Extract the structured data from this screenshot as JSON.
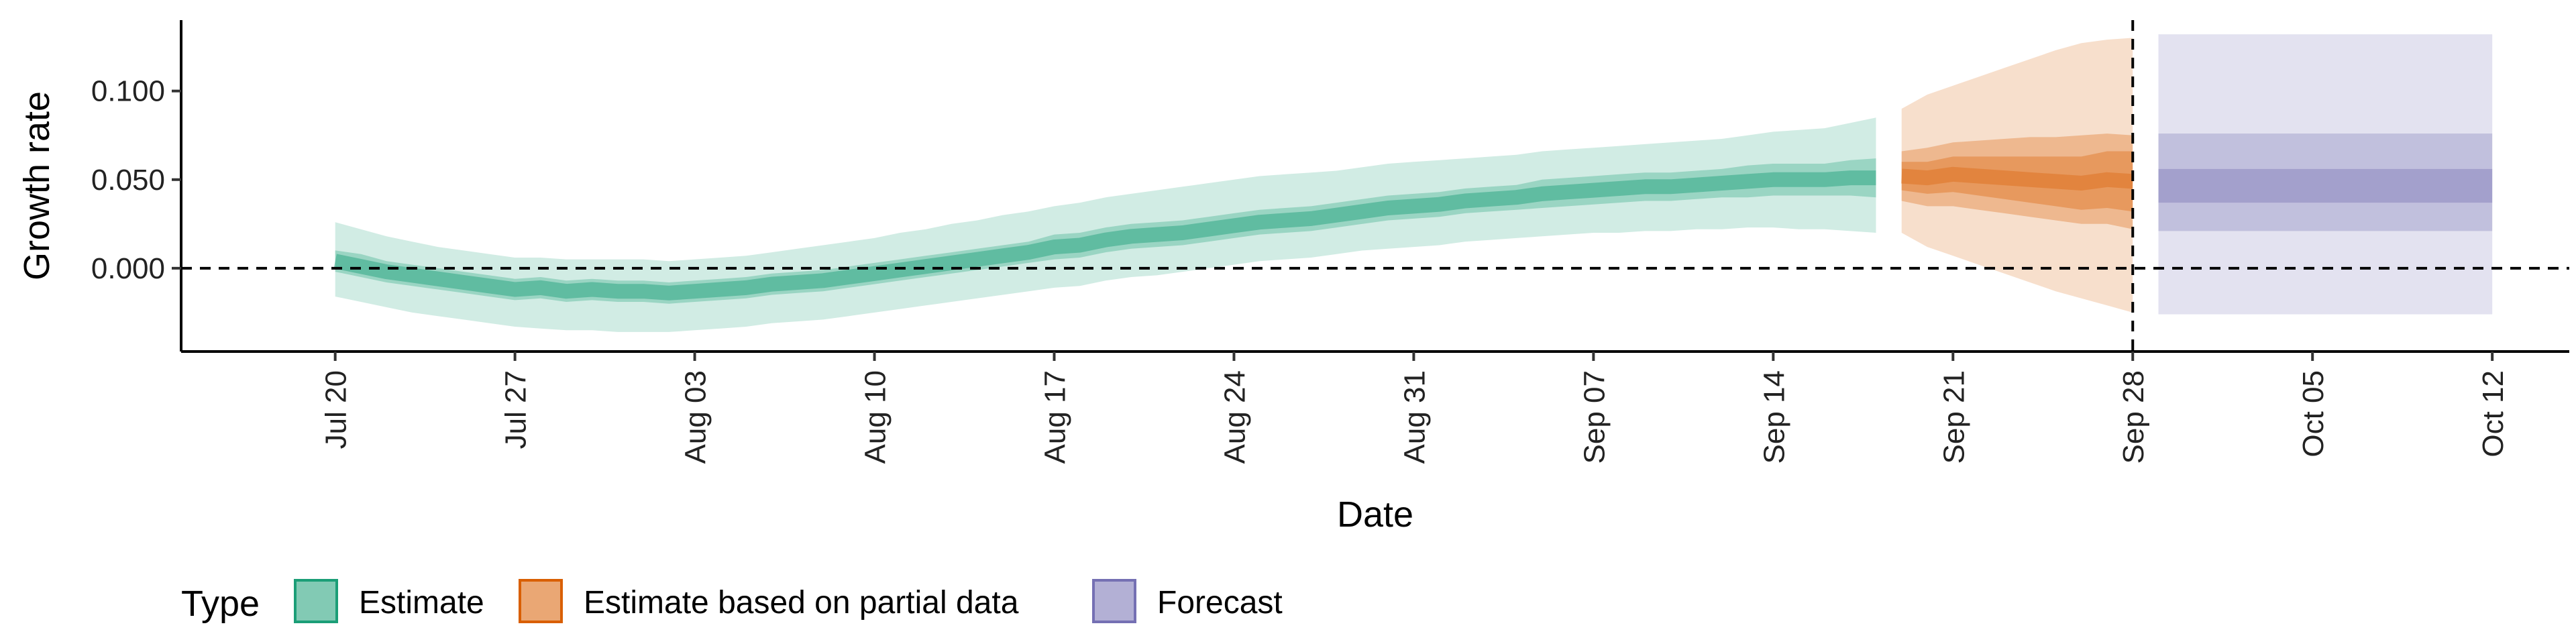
{
  "chart_data": {
    "type": "area",
    "xlabel": "Date",
    "ylabel": "Growth rate",
    "x_range": [
      "2020-07-14",
      "2020-10-15"
    ],
    "ylim": [
      -0.047,
      0.14
    ],
    "y_ticks": [
      0.0,
      0.05,
      0.1
    ],
    "y_tick_labels": [
      "0.000",
      "0.050",
      "0.100"
    ],
    "x_ticks": [
      "2020-07-20",
      "2020-07-27",
      "2020-08-03",
      "2020-08-10",
      "2020-08-17",
      "2020-08-24",
      "2020-08-31",
      "2020-09-07",
      "2020-09-14",
      "2020-09-21",
      "2020-09-28",
      "2020-10-05",
      "2020-10-12"
    ],
    "x_tick_labels": [
      "Jul 20",
      "Jul 27",
      "Aug 03",
      "Aug 10",
      "Aug 17",
      "Aug 24",
      "Aug 31",
      "Sep 07",
      "Sep 14",
      "Sep 21",
      "Sep 28",
      "Oct 05",
      "Oct 12"
    ],
    "hline": 0,
    "vline": "2020-09-28",
    "legend": {
      "title": "Type",
      "position": "bottom",
      "entries": [
        {
          "label": "Estimate",
          "color": "#1b9e77"
        },
        {
          "label": "Estimate based on partial data",
          "color": "#d95f02"
        },
        {
          "label": "Forecast",
          "color": "#7570b3"
        }
      ]
    },
    "series": [
      {
        "name": "Estimate",
        "color": "#1b9e77",
        "x": [
          "2020-07-20",
          "2020-07-21",
          "2020-07-22",
          "2020-07-23",
          "2020-07-24",
          "2020-07-25",
          "2020-07-26",
          "2020-07-27",
          "2020-07-28",
          "2020-07-29",
          "2020-07-30",
          "2020-07-31",
          "2020-08-01",
          "2020-08-02",
          "2020-08-03",
          "2020-08-04",
          "2020-08-05",
          "2020-08-06",
          "2020-08-07",
          "2020-08-08",
          "2020-08-09",
          "2020-08-10",
          "2020-08-11",
          "2020-08-12",
          "2020-08-13",
          "2020-08-14",
          "2020-08-15",
          "2020-08-16",
          "2020-08-17",
          "2020-08-18",
          "2020-08-19",
          "2020-08-20",
          "2020-08-21",
          "2020-08-22",
          "2020-08-23",
          "2020-08-24",
          "2020-08-25",
          "2020-08-26",
          "2020-08-27",
          "2020-08-28",
          "2020-08-29",
          "2020-08-30",
          "2020-08-31",
          "2020-09-01",
          "2020-09-02",
          "2020-09-03",
          "2020-09-04",
          "2020-09-05",
          "2020-09-06",
          "2020-09-07",
          "2020-09-08",
          "2020-09-09",
          "2020-09-10",
          "2020-09-11",
          "2020-09-12",
          "2020-09-13",
          "2020-09-14",
          "2020-09-15",
          "2020-09-16",
          "2020-09-17",
          "2020-09-18"
        ],
        "median": [
          0.004,
          0.001,
          -0.002,
          -0.004,
          -0.006,
          -0.008,
          -0.01,
          -0.012,
          -0.011,
          -0.013,
          -0.012,
          -0.013,
          -0.013,
          -0.014,
          -0.013,
          -0.012,
          -0.011,
          -0.009,
          -0.008,
          -0.007,
          -0.005,
          -0.003,
          -0.001,
          0.001,
          0.003,
          0.005,
          0.007,
          0.009,
          0.012,
          0.013,
          0.016,
          0.018,
          0.019,
          0.02,
          0.022,
          0.024,
          0.026,
          0.027,
          0.028,
          0.03,
          0.032,
          0.034,
          0.035,
          0.036,
          0.038,
          0.039,
          0.04,
          0.042,
          0.043,
          0.044,
          0.045,
          0.046,
          0.046,
          0.047,
          0.048,
          0.049,
          0.05,
          0.05,
          0.05,
          0.051,
          0.051
        ],
        "inner": [
          [
            -0.002,
            0.01
          ],
          [
            -0.005,
            0.008
          ],
          [
            -0.008,
            0.004
          ],
          [
            -0.01,
            0.002
          ],
          [
            -0.012,
            0.0
          ],
          [
            -0.014,
            -0.002
          ],
          [
            -0.016,
            -0.004
          ],
          [
            -0.018,
            -0.006
          ],
          [
            -0.017,
            -0.005
          ],
          [
            -0.019,
            -0.007
          ],
          [
            -0.018,
            -0.006
          ],
          [
            -0.019,
            -0.007
          ],
          [
            -0.019,
            -0.007
          ],
          [
            -0.02,
            -0.008
          ],
          [
            -0.019,
            -0.007
          ],
          [
            -0.018,
            -0.006
          ],
          [
            -0.017,
            -0.005
          ],
          [
            -0.015,
            -0.003
          ],
          [
            -0.014,
            -0.002
          ],
          [
            -0.013,
            -0.001
          ],
          [
            -0.011,
            0.001
          ],
          [
            -0.009,
            0.003
          ],
          [
            -0.007,
            0.005
          ],
          [
            -0.005,
            0.007
          ],
          [
            -0.003,
            0.009
          ],
          [
            -0.001,
            0.011
          ],
          [
            0.001,
            0.013
          ],
          [
            0.003,
            0.015
          ],
          [
            0.005,
            0.019
          ],
          [
            0.006,
            0.02
          ],
          [
            0.009,
            0.023
          ],
          [
            0.011,
            0.025
          ],
          [
            0.012,
            0.026
          ],
          [
            0.013,
            0.027
          ],
          [
            0.015,
            0.029
          ],
          [
            0.017,
            0.031
          ],
          [
            0.019,
            0.033
          ],
          [
            0.02,
            0.034
          ],
          [
            0.021,
            0.035
          ],
          [
            0.023,
            0.037
          ],
          [
            0.025,
            0.039
          ],
          [
            0.027,
            0.041
          ],
          [
            0.028,
            0.042
          ],
          [
            0.029,
            0.043
          ],
          [
            0.031,
            0.045
          ],
          [
            0.032,
            0.046
          ],
          [
            0.033,
            0.047
          ],
          [
            0.034,
            0.05
          ],
          [
            0.035,
            0.051
          ],
          [
            0.036,
            0.052
          ],
          [
            0.037,
            0.053
          ],
          [
            0.038,
            0.054
          ],
          [
            0.038,
            0.054
          ],
          [
            0.039,
            0.055
          ],
          [
            0.04,
            0.056
          ],
          [
            0.04,
            0.058
          ],
          [
            0.041,
            0.059
          ],
          [
            0.041,
            0.059
          ],
          [
            0.041,
            0.059
          ],
          [
            0.041,
            0.061
          ],
          [
            0.04,
            0.062
          ]
        ],
        "outer": [
          [
            -0.016,
            0.026
          ],
          [
            -0.019,
            0.022
          ],
          [
            -0.022,
            0.018
          ],
          [
            -0.025,
            0.015
          ],
          [
            -0.027,
            0.012
          ],
          [
            -0.029,
            0.01
          ],
          [
            -0.031,
            0.008
          ],
          [
            -0.033,
            0.006
          ],
          [
            -0.034,
            0.006
          ],
          [
            -0.035,
            0.005
          ],
          [
            -0.035,
            0.005
          ],
          [
            -0.036,
            0.005
          ],
          [
            -0.036,
            0.005
          ],
          [
            -0.036,
            0.004
          ],
          [
            -0.035,
            0.005
          ],
          [
            -0.034,
            0.006
          ],
          [
            -0.033,
            0.007
          ],
          [
            -0.031,
            0.009
          ],
          [
            -0.03,
            0.011
          ],
          [
            -0.029,
            0.013
          ],
          [
            -0.027,
            0.015
          ],
          [
            -0.025,
            0.017
          ],
          [
            -0.023,
            0.02
          ],
          [
            -0.021,
            0.022
          ],
          [
            -0.019,
            0.025
          ],
          [
            -0.017,
            0.027
          ],
          [
            -0.015,
            0.03
          ],
          [
            -0.013,
            0.032
          ],
          [
            -0.011,
            0.035
          ],
          [
            -0.01,
            0.037
          ],
          [
            -0.007,
            0.04
          ],
          [
            -0.005,
            0.042
          ],
          [
            -0.004,
            0.044
          ],
          [
            -0.002,
            0.046
          ],
          [
            0.0,
            0.048
          ],
          [
            0.002,
            0.05
          ],
          [
            0.004,
            0.052
          ],
          [
            0.005,
            0.053
          ],
          [
            0.006,
            0.054
          ],
          [
            0.008,
            0.055
          ],
          [
            0.01,
            0.057
          ],
          [
            0.011,
            0.059
          ],
          [
            0.012,
            0.06
          ],
          [
            0.013,
            0.061
          ],
          [
            0.015,
            0.062
          ],
          [
            0.016,
            0.063
          ],
          [
            0.017,
            0.064
          ],
          [
            0.018,
            0.066
          ],
          [
            0.019,
            0.067
          ],
          [
            0.02,
            0.068
          ],
          [
            0.02,
            0.069
          ],
          [
            0.021,
            0.07
          ],
          [
            0.021,
            0.071
          ],
          [
            0.022,
            0.072
          ],
          [
            0.022,
            0.073
          ],
          [
            0.023,
            0.075
          ],
          [
            0.023,
            0.077
          ],
          [
            0.022,
            0.078
          ],
          [
            0.022,
            0.079
          ],
          [
            0.021,
            0.082
          ],
          [
            0.02,
            0.085
          ]
        ]
      },
      {
        "name": "Estimate based on partial data",
        "color": "#d95f02",
        "x": [
          "2020-09-19",
          "2020-09-20",
          "2020-09-21",
          "2020-09-22",
          "2020-09-23",
          "2020-09-24",
          "2020-09-25",
          "2020-09-26",
          "2020-09-27",
          "2020-09-28"
        ],
        "median": [
          0.052,
          0.051,
          0.053,
          0.052,
          0.051,
          0.05,
          0.049,
          0.048,
          0.05,
          0.049
        ],
        "inner": [
          [
            0.044,
            0.06
          ],
          [
            0.042,
            0.06
          ],
          [
            0.043,
            0.063
          ],
          [
            0.041,
            0.063
          ],
          [
            0.039,
            0.063
          ],
          [
            0.037,
            0.063
          ],
          [
            0.035,
            0.063
          ],
          [
            0.033,
            0.063
          ],
          [
            0.034,
            0.066
          ],
          [
            0.032,
            0.066
          ]
        ],
        "middle": [
          [
            0.038,
            0.066
          ],
          [
            0.035,
            0.068
          ],
          [
            0.035,
            0.071
          ],
          [
            0.033,
            0.072
          ],
          [
            0.031,
            0.073
          ],
          [
            0.029,
            0.074
          ],
          [
            0.027,
            0.074
          ],
          [
            0.025,
            0.075
          ],
          [
            0.025,
            0.076
          ],
          [
            0.022,
            0.075
          ]
        ],
        "outer": [
          [
            0.02,
            0.09
          ],
          [
            0.012,
            0.098
          ],
          [
            0.007,
            0.103
          ],
          [
            0.002,
            0.108
          ],
          [
            -0.003,
            0.113
          ],
          [
            -0.008,
            0.118
          ],
          [
            -0.013,
            0.123
          ],
          [
            -0.017,
            0.127
          ],
          [
            -0.021,
            0.129
          ],
          [
            -0.025,
            0.13
          ]
        ]
      },
      {
        "name": "Forecast",
        "color": "#7570b3",
        "x": [
          "2020-09-29",
          "2020-10-12"
        ],
        "inner": [
          0.037,
          0.056
        ],
        "middle": [
          0.021,
          0.076
        ],
        "outer": [
          -0.026,
          0.132
        ]
      }
    ]
  }
}
